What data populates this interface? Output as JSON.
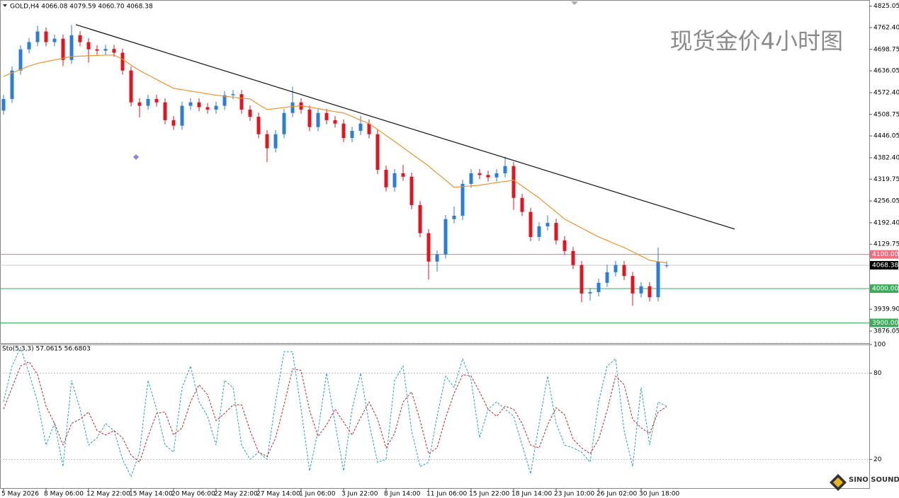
{
  "chart_data": [
    {
      "type": "candlestick",
      "title": "现货金价4小时图",
      "header": "GOLD,H4  4066.08 4079.59 4060.70 4068.38",
      "categories": [
        "5 May 2026",
        null,
        null,
        null,
        null,
        "8 May 06:00",
        null,
        null,
        null,
        null,
        "12 May 22:00",
        null,
        null,
        null,
        null,
        "15 May 14:00",
        null,
        null,
        null,
        null,
        "20 May 06:00",
        null,
        null,
        null,
        null,
        "22 May 22:00",
        null,
        null,
        null,
        null,
        "27 May 14:00",
        null,
        null,
        null,
        null,
        "1 Jun 06:00",
        null,
        null,
        null,
        null,
        "3 Jun 22:00",
        null,
        null,
        null,
        null,
        "8 Jun 14:00",
        null,
        null,
        null,
        null,
        "11 Jun 06:00",
        null,
        null,
        null,
        null,
        "15 Jun 22:00",
        null,
        null,
        null,
        null,
        "18 Jun 14:00",
        null,
        null,
        null,
        null,
        "23 Jun 10:00",
        null,
        null,
        null,
        null,
        "26 Jun 02:00",
        null,
        null,
        null,
        null,
        "30 Jun 18:00",
        null,
        null,
        null
      ],
      "open": [
        4520,
        4554,
        4637,
        4699,
        4720,
        4751,
        4720,
        4730,
        4668,
        4740,
        4720,
        4699,
        4695,
        4700,
        4689,
        4637,
        4544,
        4534,
        4554,
        4544,
        4492,
        4476,
        4534,
        4544,
        4530,
        4523,
        4534,
        4565,
        4568,
        4523,
        4502,
        4451,
        4410,
        4451,
        4513,
        4544,
        4523,
        4472,
        4513,
        4492,
        4482,
        4440,
        4461,
        4482,
        4451,
        4347,
        4296,
        4337,
        4327,
        4244,
        4162,
        4079,
        4100,
        4203,
        4213,
        4306,
        4337,
        4332,
        4325,
        4337,
        4358,
        4265,
        4224,
        4151,
        4182,
        4192,
        4141,
        4110,
        4069,
        3986,
        3990,
        4017,
        4048,
        4069,
        4037,
        3986,
        4007,
        3975,
        4066.08
      ],
      "high": [
        4566,
        4649,
        4711,
        4732,
        4768,
        4763,
        4742,
        4742,
        4770,
        4752,
        4732,
        4711,
        4712,
        4712,
        4701,
        4649,
        4556,
        4566,
        4566,
        4556,
        4504,
        4546,
        4556,
        4556,
        4542,
        4546,
        4577,
        4580,
        4580,
        4535,
        4514,
        4463,
        4463,
        4525,
        4590,
        4556,
        4535,
        4525,
        4525,
        4504,
        4494,
        4473,
        4505,
        4494,
        4463,
        4359,
        4349,
        4362,
        4339,
        4256,
        4174,
        4112,
        4215,
        4240,
        4318,
        4349,
        4349,
        4344,
        4349,
        4385,
        4370,
        4277,
        4236,
        4194,
        4214,
        4204,
        4153,
        4122,
        4081,
        4002,
        4029,
        4070,
        4081,
        4081,
        4049,
        4019,
        4019,
        4120,
        4079.59
      ],
      "low": [
        4508,
        4542,
        4625,
        4687,
        4708,
        4708,
        4708,
        4650,
        4656,
        4708,
        4660,
        4683,
        4683,
        4677,
        4625,
        4532,
        4500,
        4522,
        4532,
        4480,
        4464,
        4464,
        4522,
        4518,
        4511,
        4511,
        4522,
        4553,
        4511,
        4490,
        4439,
        4370,
        4398,
        4439,
        4501,
        4511,
        4460,
        4460,
        4480,
        4470,
        4428,
        4428,
        4449,
        4439,
        4335,
        4284,
        4284,
        4315,
        4232,
        4150,
        4027,
        4050,
        4088,
        4191,
        4201,
        4294,
        4320,
        4313,
        4313,
        4325,
        4230,
        4212,
        4139,
        4139,
        4170,
        4129,
        4098,
        4057,
        3960,
        3965,
        3978,
        4005,
        4036,
        4025,
        3950,
        3974,
        3963,
        3963,
        4060.7
      ],
      "close": [
        4554,
        4637,
        4699,
        4720,
        4751,
        4720,
        4730,
        4668,
        4740,
        4720,
        4699,
        4695,
        4700,
        4689,
        4637,
        4544,
        4534,
        4554,
        4544,
        4492,
        4476,
        4534,
        4544,
        4530,
        4523,
        4534,
        4565,
        4568,
        4523,
        4502,
        4451,
        4410,
        4451,
        4513,
        4544,
        4523,
        4472,
        4513,
        4492,
        4482,
        4440,
        4461,
        4482,
        4451,
        4347,
        4296,
        4337,
        4327,
        4244,
        4162,
        4079,
        4100,
        4203,
        4213,
        4306,
        4337,
        4332,
        4325,
        4337,
        4358,
        4265,
        4224,
        4151,
        4182,
        4192,
        4141,
        4110,
        4069,
        3986,
        3990,
        4017,
        4048,
        4069,
        4037,
        3986,
        4007,
        3975,
        4079,
        4068.38
      ],
      "up_color": "#2a7fd4",
      "down_color": "#e3141f",
      "moving_average": {
        "color": "#f0932b",
        "values": [
          4620,
          4630,
          4640,
          4650,
          4658,
          4663,
          4668,
          4673,
          4678,
          4679,
          4680,
          4681,
          4682,
          4682,
          4670,
          4653,
          4637,
          4624,
          4611,
          4598,
          4585,
          4581,
          4577,
          4573,
          4569,
          4565,
          4562,
          4559,
          4556,
          4554,
          4538,
          4523,
          4526,
          4529,
          4532,
          4534,
          4530,
          4526,
          4521,
          4517,
          4513,
          4503,
          4492,
          4482,
          4465,
          4447,
          4430,
          4412,
          4394,
          4376,
          4358,
          4337,
          4317,
          4296,
          4298,
          4300,
          4302,
          4306,
          4310,
          4313,
          4317,
          4300,
          4282,
          4265,
          4244,
          4224,
          4203,
          4190,
          4177,
          4164,
          4151,
          4141,
          4130,
          4120,
          4108,
          4095,
          4083,
          4079,
          4075
        ]
      },
      "trendline": {
        "x": [
          8.5,
          86
        ],
        "y": [
          4771,
          4174
        ],
        "color": "#111111"
      },
      "levels": [
        {
          "value": 4100,
          "label": "4100.00",
          "color": "#ee6f80"
        },
        {
          "value": 4068.38,
          "label": "4068.38",
          "color": "#c8c8c8",
          "label_color": "#000000"
        },
        {
          "value": 4000,
          "label": "4000.00",
          "color": "#3aae5a"
        },
        {
          "value": 3900,
          "label": "3900.00",
          "color": "#3aae5a"
        }
      ],
      "ylim": [
        3841,
        4843
      ],
      "yticks": [
        4825.05,
        {
          "value": 4762.4,
          "label": "4762.40"
        },
        4698.75,
        4636.05,
        {
          "value": 4572.4,
          "label": "4572.40"
        },
        4508.75,
        4446.05,
        {
          "value": 4382.4,
          "label": "4382.40"
        },
        4319.75,
        4256.05,
        {
          "value": 4192.4,
          "label": "4192.40"
        },
        4129.75,
        {
          "value": 3939.9,
          "label": "3939.90"
        },
        3876.05
      ]
    },
    {
      "type": "line",
      "title": "Sto(5,3,3) 57.0615 56.6803",
      "series": [
        {
          "color": "#20a8b8",
          "values": [
            60,
            85,
            98,
            80,
            60,
            30,
            45,
            15,
            75,
            55,
            30,
            35,
            45,
            40,
            20,
            8,
            25,
            75,
            55,
            30,
            25,
            70,
            85,
            60,
            50,
            30,
            75,
            70,
            30,
            20,
            25,
            20,
            60,
            95,
            95,
            55,
            12,
            40,
            80,
            45,
            12,
            55,
            80,
            45,
            18,
            20,
            75,
            85,
            40,
            15,
            18,
            50,
            78,
            70,
            90,
            75,
            35,
            55,
            60,
            55,
            50,
            30,
            10,
            45,
            78,
            45,
            30,
            28,
            25,
            18,
            60,
            85,
            90,
            40,
            15,
            70,
            30,
            60,
            57.0615
          ]
        },
        {
          "color": "#d81e28",
          "values": [
            55,
            70,
            85,
            88,
            79,
            57,
            45,
            30,
            45,
            48,
            53,
            40,
            37,
            40,
            35,
            23,
            18,
            36,
            52,
            53,
            37,
            42,
            60,
            72,
            65,
            47,
            52,
            58,
            58,
            40,
            25,
            22,
            35,
            58,
            83,
            82,
            54,
            36,
            44,
            55,
            46,
            37,
            49,
            60,
            48,
            28,
            38,
            60,
            67,
            47,
            24,
            28,
            49,
            66,
            79,
            78,
            67,
            55,
            50,
            57,
            55,
            45,
            30,
            28,
            44,
            56,
            51,
            34,
            28,
            24,
            34,
            54,
            78,
            72,
            48,
            42,
            38,
            53,
            56.6803
          ]
        }
      ],
      "ylim": [
        0,
        100
      ],
      "yticks": [
        100,
        80,
        20
      ]
    }
  ],
  "logo": "SINO SOUND"
}
